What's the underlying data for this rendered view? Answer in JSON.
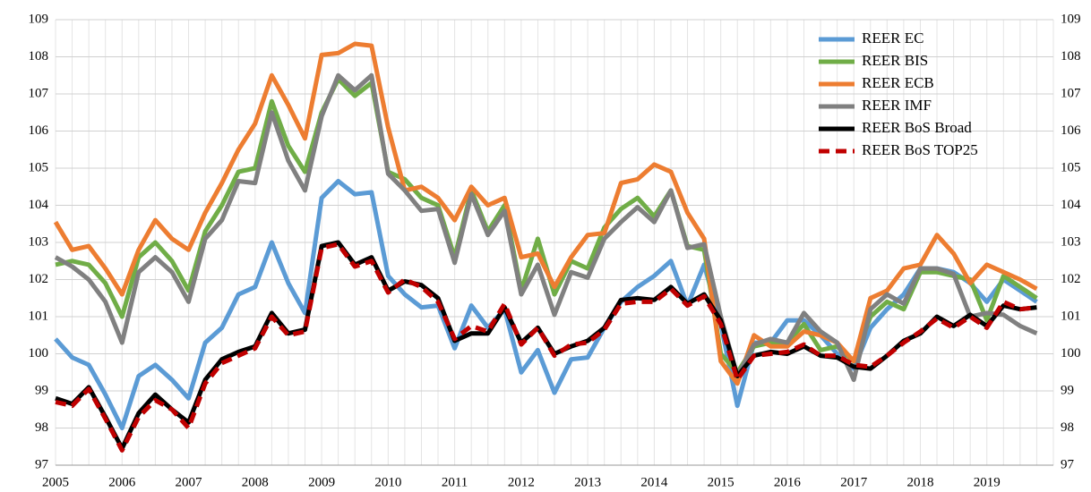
{
  "chart_data": {
    "type": "line",
    "categories": [
      "2005",
      null,
      null,
      null,
      "2006",
      null,
      null,
      null,
      "2007",
      null,
      null,
      null,
      "2008",
      null,
      null,
      null,
      "2009",
      null,
      null,
      null,
      "2010",
      null,
      null,
      null,
      "2011",
      null,
      null,
      null,
      "2012",
      null,
      null,
      null,
      "2013",
      null,
      null,
      null,
      "2014",
      null,
      null,
      null,
      "2015",
      null,
      null,
      null,
      "2016",
      null,
      null,
      null,
      "2017",
      null,
      null,
      null,
      "2018",
      null,
      null,
      null,
      "2019",
      null,
      null,
      null
    ],
    "series": [
      {
        "name": "REER EC",
        "color": "#5b9bd5",
        "values": [
          100.4,
          99.9,
          99.7,
          98.9,
          98.0,
          99.4,
          99.7,
          99.3,
          98.8,
          100.3,
          100.7,
          101.6,
          101.8,
          103.0,
          101.9,
          101.1,
          104.2,
          104.65,
          104.3,
          104.35,
          102.1,
          101.6,
          101.25,
          101.3,
          100.15,
          101.3,
          100.7,
          101.2,
          99.5,
          100.1,
          98.95,
          99.85,
          99.9,
          100.7,
          101.4,
          101.8,
          102.1,
          102.5,
          101.3,
          102.4,
          100.8,
          98.6,
          100.3,
          100.3,
          100.9,
          100.9,
          100.5,
          100.0,
          99.6,
          100.7,
          101.2,
          101.6,
          102.3,
          102.3,
          102.2,
          101.9,
          101.4,
          102.0,
          101.7,
          101.4
        ]
      },
      {
        "name": "REER BIS",
        "color": "#70ad47",
        "values": [
          102.4,
          102.5,
          102.4,
          101.9,
          101.0,
          102.6,
          103.0,
          102.5,
          101.7,
          103.3,
          104.0,
          104.9,
          105.0,
          106.8,
          105.6,
          104.9,
          106.5,
          107.4,
          106.95,
          107.3,
          104.9,
          104.7,
          104.2,
          104.0,
          102.6,
          104.4,
          103.3,
          104.0,
          101.7,
          103.1,
          101.6,
          102.5,
          102.3,
          103.4,
          103.9,
          104.2,
          103.7,
          104.4,
          102.9,
          102.8,
          100.0,
          99.5,
          100.2,
          100.3,
          100.3,
          100.8,
          100.1,
          100.2,
          99.8,
          101.0,
          101.4,
          101.2,
          102.2,
          102.2,
          102.1,
          102.0,
          100.9,
          102.1,
          101.8,
          101.5
        ]
      },
      {
        "name": "REER ECB",
        "color": "#ed7d31",
        "values": [
          103.55,
          102.8,
          102.9,
          102.3,
          101.6,
          102.8,
          103.6,
          103.1,
          102.8,
          103.8,
          104.6,
          105.5,
          106.2,
          107.5,
          106.7,
          105.8,
          108.05,
          108.1,
          108.35,
          108.3,
          106.1,
          104.4,
          104.5,
          104.2,
          103.6,
          104.5,
          104.0,
          104.2,
          102.6,
          102.7,
          101.8,
          102.6,
          103.2,
          103.25,
          104.6,
          104.7,
          105.1,
          104.9,
          103.8,
          103.1,
          99.8,
          99.2,
          100.5,
          100.2,
          100.2,
          100.6,
          100.5,
          100.3,
          99.8,
          101.5,
          101.7,
          102.3,
          102.4,
          103.2,
          102.7,
          101.9,
          102.4,
          102.2,
          102.0,
          101.75
        ]
      },
      {
        "name": "REER IMF",
        "color": "#808080",
        "values": [
          102.6,
          102.35,
          102.0,
          101.4,
          100.3,
          102.2,
          102.6,
          102.2,
          101.4,
          103.1,
          103.6,
          104.65,
          104.6,
          106.5,
          105.2,
          104.4,
          106.4,
          107.5,
          107.1,
          107.5,
          104.85,
          104.4,
          103.85,
          103.9,
          102.45,
          104.3,
          103.2,
          103.85,
          101.6,
          102.4,
          101.05,
          102.2,
          102.05,
          103.1,
          103.55,
          103.95,
          103.55,
          104.4,
          102.85,
          102.95,
          101.0,
          99.4,
          100.25,
          100.4,
          100.3,
          101.1,
          100.6,
          100.3,
          99.3,
          101.2,
          101.6,
          101.35,
          102.3,
          102.3,
          102.15,
          101.0,
          101.1,
          101.05,
          100.75,
          100.55
        ]
      },
      {
        "name": "REER BoS Broad",
        "color": "#000000",
        "values": [
          98.8,
          98.65,
          99.1,
          98.3,
          97.45,
          98.4,
          98.9,
          98.5,
          98.15,
          99.3,
          99.85,
          100.05,
          100.2,
          101.1,
          100.55,
          100.65,
          102.9,
          103.0,
          102.4,
          102.6,
          101.7,
          101.95,
          101.85,
          101.5,
          100.35,
          100.55,
          100.55,
          101.25,
          100.3,
          100.7,
          100.0,
          100.2,
          100.35,
          100.7,
          101.45,
          101.5,
          101.45,
          101.8,
          101.35,
          101.6,
          100.9,
          99.4,
          99.95,
          100.05,
          100.0,
          100.2,
          99.95,
          99.9,
          99.65,
          99.6,
          99.95,
          100.35,
          100.55,
          101.0,
          100.75,
          101.05,
          100.75,
          101.3,
          101.2,
          101.25
        ]
      },
      {
        "name": "REER BoS TOP25",
        "color": "#c00000",
        "dashed": true,
        "values": [
          98.7,
          98.6,
          99.05,
          98.25,
          97.4,
          98.3,
          98.75,
          98.5,
          98.0,
          99.2,
          99.75,
          99.95,
          100.15,
          101.0,
          100.5,
          100.6,
          102.85,
          102.95,
          102.35,
          102.5,
          101.65,
          102.0,
          101.8,
          101.4,
          100.4,
          100.75,
          100.6,
          101.35,
          100.25,
          100.7,
          99.95,
          100.25,
          100.3,
          100.65,
          101.35,
          101.4,
          101.4,
          101.75,
          101.3,
          101.55,
          100.8,
          99.3,
          99.95,
          100.0,
          100.05,
          100.25,
          99.95,
          99.95,
          99.7,
          99.65,
          99.95,
          100.3,
          100.6,
          100.95,
          100.7,
          101.0,
          100.7,
          101.4,
          101.2,
          101.25
        ]
      }
    ],
    "ylim": [
      97,
      109
    ],
    "yticks": [
      97,
      98,
      99,
      100,
      101,
      102,
      103,
      104,
      105,
      106,
      107,
      108,
      109
    ],
    "grid": true,
    "legend": "upper right"
  }
}
